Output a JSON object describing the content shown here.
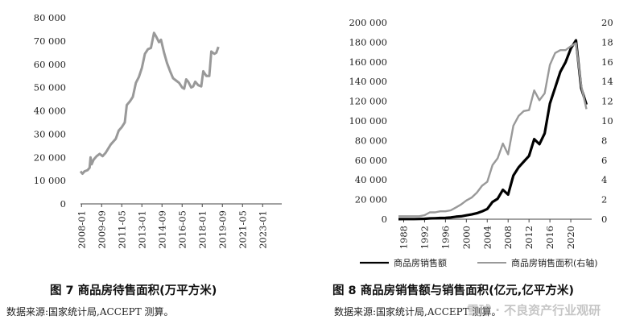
{
  "chart_data": [
    {
      "type": "line",
      "title": "",
      "xlabel": "",
      "ylabel": "",
      "ylim": [
        0,
        80000
      ],
      "yticks": [
        "0",
        "10 000",
        "20 000",
        "30 000",
        "40 000",
        "50 000",
        "60 000",
        "70 000",
        "80 000"
      ],
      "xticks": [
        "2008-01",
        "2009-09",
        "2011-05",
        "2013-01",
        "2014-09",
        "2016-05",
        "2018-01",
        "2019-09",
        "2021-05",
        "2023-01"
      ],
      "xlim": [
        0,
        200
      ],
      "series": [
        {
          "name": "",
          "color": "#999999",
          "points": [
            [
              0,
              14000
            ],
            [
              2,
              13000
            ],
            [
              4,
              14000
            ],
            [
              7,
              14500
            ],
            [
              9,
              15500
            ],
            [
              10,
              20000
            ],
            [
              11,
              17000
            ],
            [
              13,
              19000
            ],
            [
              16,
              20500
            ],
            [
              19,
              21500
            ],
            [
              22,
              20500
            ],
            [
              25,
              22000
            ],
            [
              30,
              25500
            ],
            [
              35,
              28000
            ],
            [
              38,
              31500
            ],
            [
              41,
              33000
            ],
            [
              44,
              35000
            ],
            [
              46,
              42500
            ],
            [
              49,
              44000
            ],
            [
              52,
              46000
            ],
            [
              55,
              52000
            ],
            [
              58,
              54500
            ],
            [
              61,
              58500
            ],
            [
              64,
              64500
            ],
            [
              67,
              66500
            ],
            [
              70,
              67000
            ],
            [
              73,
              73500
            ],
            [
              75,
              72000
            ],
            [
              78,
              69500
            ],
            [
              80,
              70500
            ],
            [
              83,
              65000
            ],
            [
              86,
              60500
            ],
            [
              89,
              57000
            ],
            [
              92,
              54000
            ],
            [
              95,
              53000
            ],
            [
              98,
              52000
            ],
            [
              101,
              50000
            ],
            [
              103,
              49500
            ],
            [
              105,
              53500
            ],
            [
              107,
              52500
            ],
            [
              110,
              50000
            ],
            [
              112,
              50500
            ],
            [
              114,
              52500
            ],
            [
              117,
              51000
            ],
            [
              120,
              50500
            ],
            [
              122,
              57000
            ],
            [
              125,
              55000
            ],
            [
              128,
              55000
            ],
            [
              130,
              65500
            ],
            [
              133,
              64500
            ],
            [
              135,
              65000
            ],
            [
              137,
              67500
            ]
          ]
        }
      ]
    },
    {
      "type": "line",
      "title": "",
      "xlabel": "",
      "ylabel": "",
      "ylim": [
        0,
        200000
      ],
      "y2lim": [
        0,
        20
      ],
      "yticks": [
        "0",
        "20 000",
        "40 000",
        "60 000",
        "80 000",
        "100 000",
        "120 000",
        "140 000",
        "160 000",
        "180 000",
        "200 000"
      ],
      "y2ticks": [
        "0",
        "2",
        "4",
        "6",
        "8",
        "10",
        "12",
        "14",
        "16",
        "18",
        "20"
      ],
      "xticks": [
        "1988",
        "1992",
        "1996",
        "2000",
        "2004",
        "2008",
        "2012",
        "2016",
        "2020"
      ],
      "xlim": [
        1987,
        2024
      ],
      "series": [
        {
          "name": "商品房销售额",
          "axis": "left",
          "color": "#000000",
          "x": [
            1987,
            1988,
            1989,
            1990,
            1991,
            1992,
            1993,
            1994,
            1995,
            1996,
            1997,
            1998,
            1999,
            2000,
            2001,
            2002,
            2003,
            2004,
            2005,
            2006,
            2007,
            2008,
            2009,
            2010,
            2011,
            2012,
            2013,
            2014,
            2015,
            2016,
            2017,
            2018,
            2019,
            2020,
            2021,
            2022,
            2023
          ],
          "values": [
            110,
            150,
            160,
            200,
            240,
            430,
            860,
            1020,
            1260,
            1430,
            1800,
            2510,
            2990,
            3940,
            4860,
            6030,
            7960,
            10380,
            17580,
            20830,
            29890,
            25070,
            44360,
            52720,
            58590,
            64460,
            81430,
            76290,
            87280,
            117630,
            133700,
            149970,
            159730,
            173610,
            181930,
            133310,
            116620
          ]
        },
        {
          "name": "商品房销售面积(右轴)",
          "axis": "right",
          "color": "#999999",
          "x": [
            1987,
            1988,
            1989,
            1990,
            1991,
            1992,
            1993,
            1994,
            1995,
            1996,
            1997,
            1998,
            1999,
            2000,
            2001,
            2002,
            2003,
            2004,
            2005,
            2006,
            2007,
            2008,
            2009,
            2010,
            2011,
            2012,
            2013,
            2014,
            2015,
            2016,
            2017,
            2018,
            2019,
            2020,
            2021,
            2022,
            2023
          ],
          "values": [
            0.3,
            0.3,
            0.3,
            0.3,
            0.3,
            0.4,
            0.7,
            0.7,
            0.8,
            0.8,
            0.9,
            1.2,
            1.5,
            1.9,
            2.2,
            2.7,
            3.4,
            3.8,
            5.5,
            6.2,
            7.7,
            6.6,
            9.5,
            10.5,
            11.0,
            11.1,
            13.1,
            12.1,
            12.8,
            15.7,
            16.9,
            17.2,
            17.2,
            17.6,
            17.9,
            13.6,
            11.2
          ]
        }
      ]
    }
  ],
  "left": {
    "caption": "图 7  商品房待售面积(万平方米)",
    "source": "数据来源:国家统计局,ACCEPT 测算。"
  },
  "right": {
    "caption": "图 8  商品房销售额与销售面积(亿元,亿平方米)",
    "source": "数据来源:国家统计局,ACCEPT 测算。",
    "legend": [
      "商品房销售额",
      "商品房销售面积(右轴)"
    ]
  },
  "watermark": "雪球 · 不良资产行业观研"
}
